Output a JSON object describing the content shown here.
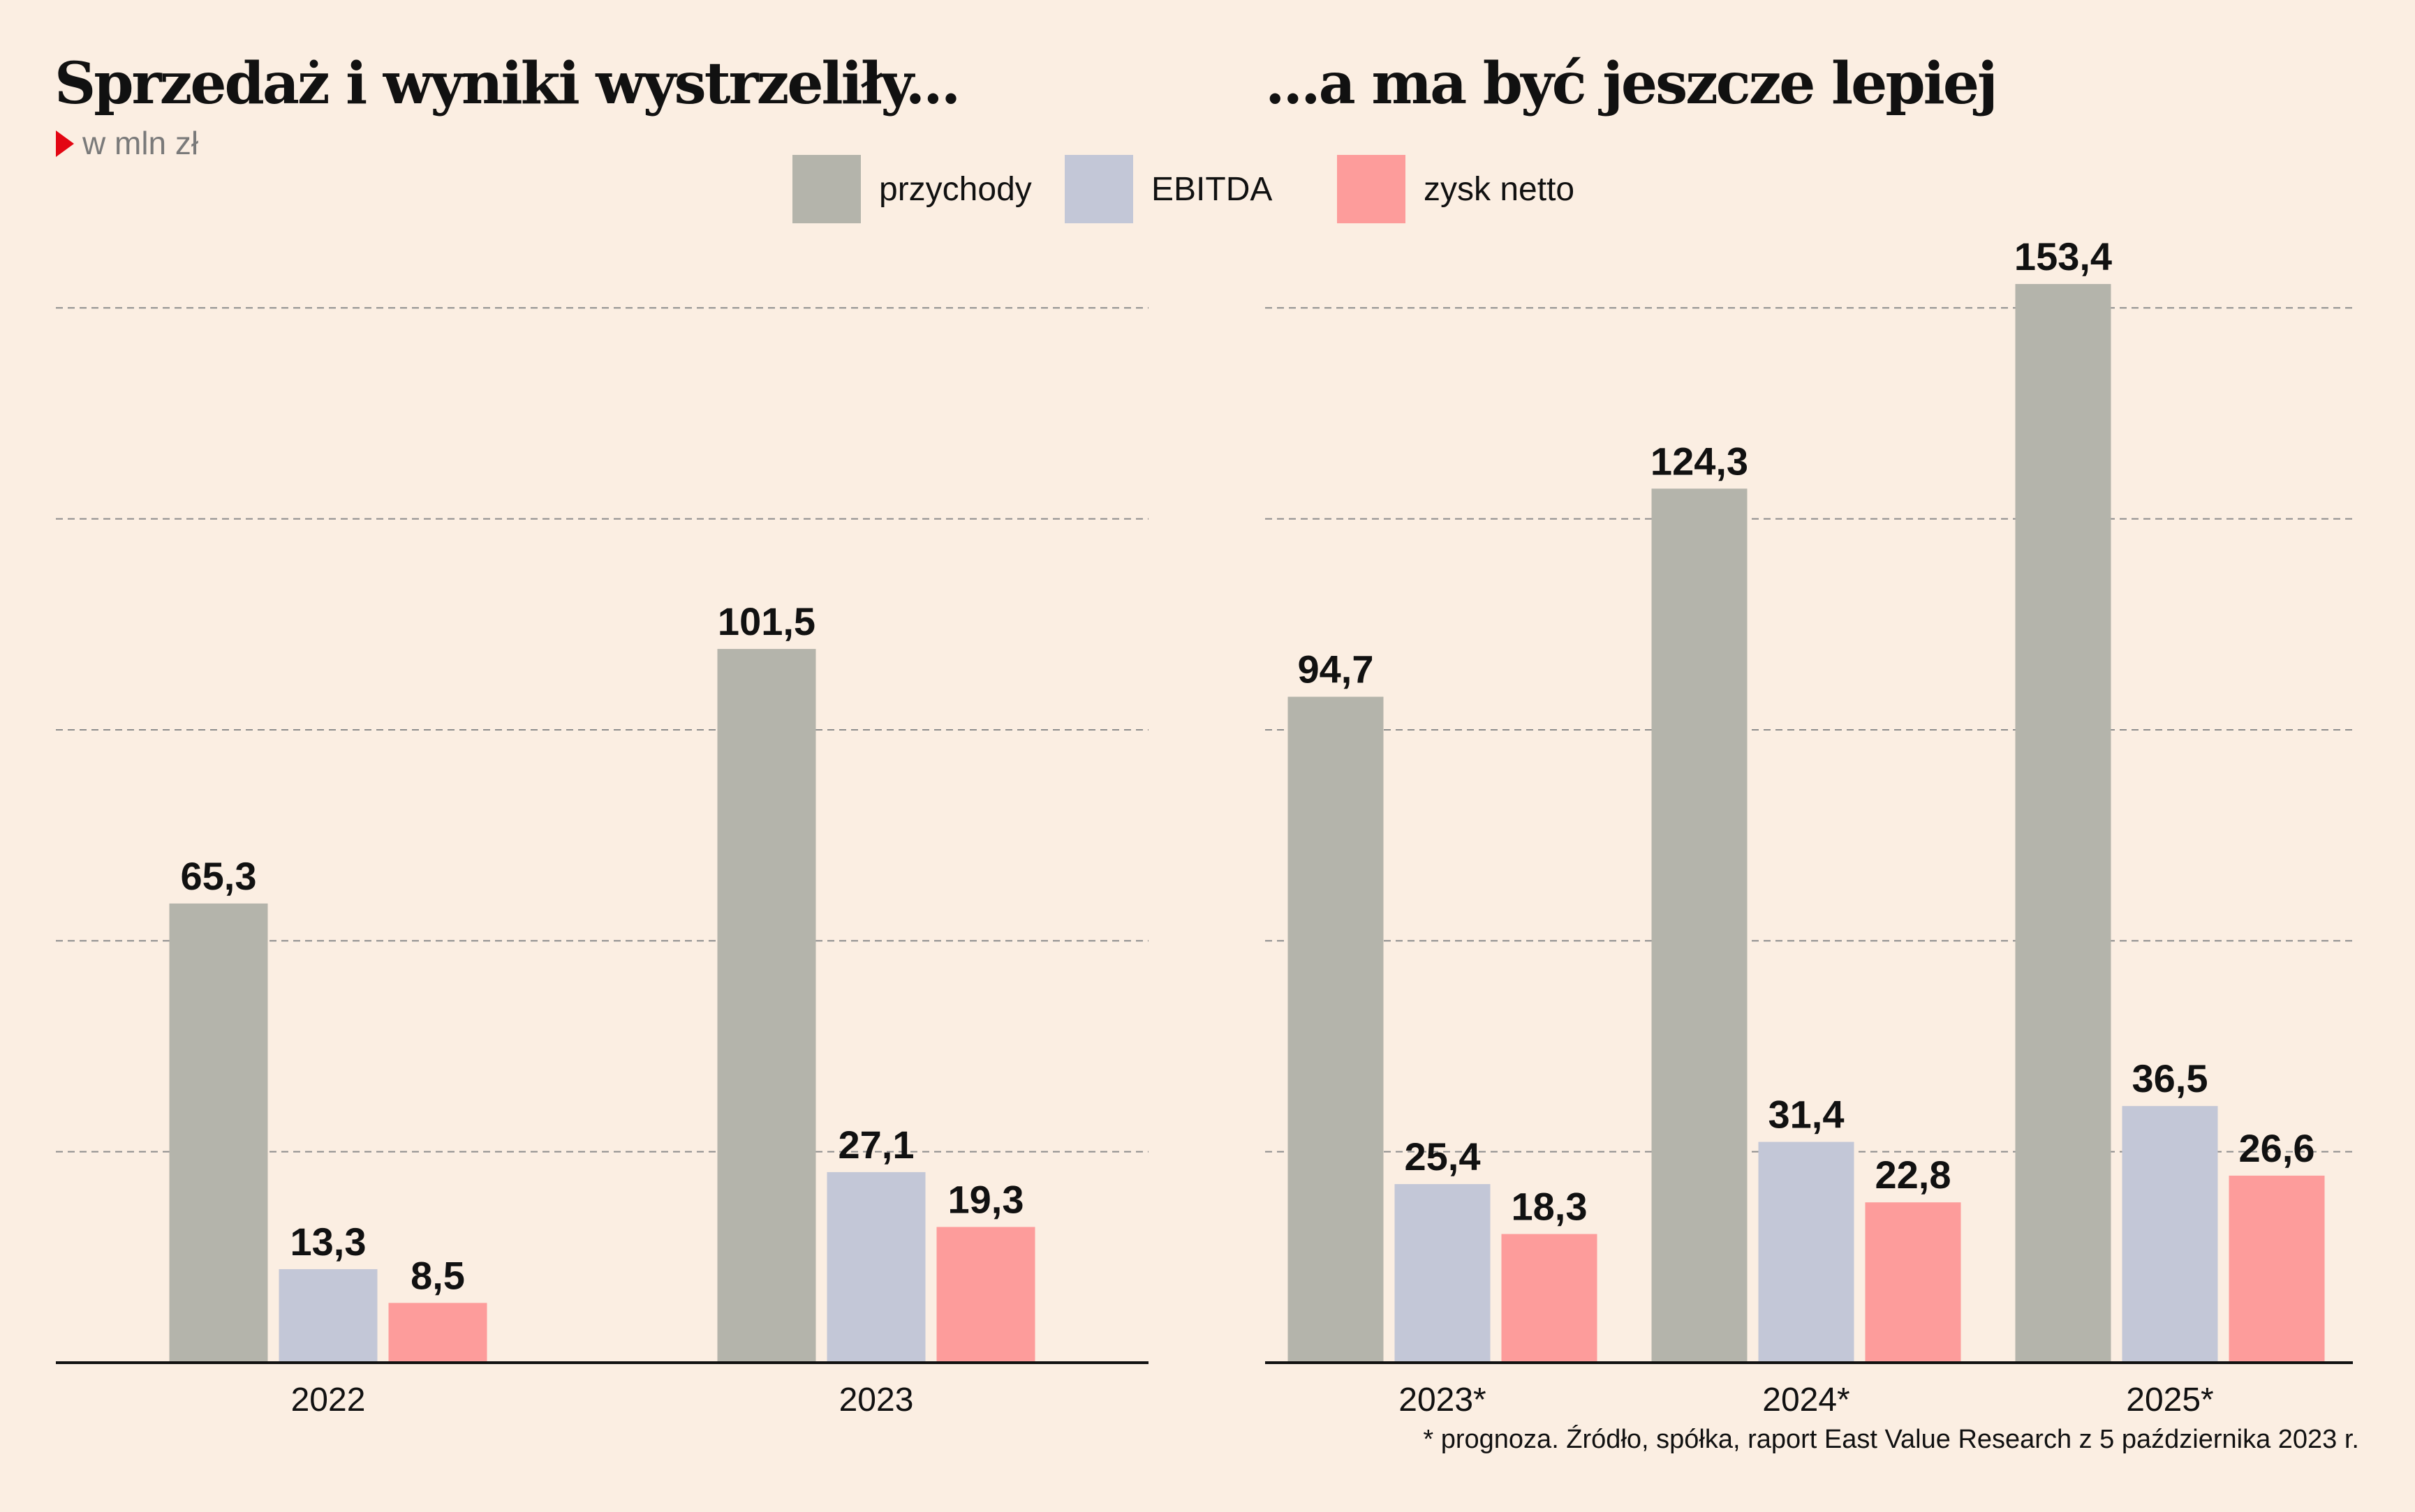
{
  "title_left": "Sprzedaż i wyniki wystrzeliły...",
  "title_right": "...a ma być jeszcze lepiej",
  "unit": "w mln zł",
  "footnote": "* prognoza. Źródło, spółka, raport East Value Research z 5 października 2023 r.",
  "legend": [
    {
      "label": "przychody",
      "color": "#b4b4ab"
    },
    {
      "label": "EBITDA",
      "color": "#c3c7d7"
    },
    {
      "label": "zysk netto",
      "color": "#fd9c9b"
    }
  ],
  "chart_data": [
    {
      "type": "bar",
      "title": "Sprzedaż i wyniki wystrzeliły...",
      "categories": [
        "2022",
        "2023"
      ],
      "series": [
        {
          "name": "przychody",
          "values": [
            65.3,
            101.5
          ],
          "labels": [
            "65,3",
            "101,5"
          ]
        },
        {
          "name": "EBITDA",
          "values": [
            13.3,
            27.1
          ],
          "labels": [
            "13,3",
            "27,1"
          ]
        },
        {
          "name": "zysk netto",
          "values": [
            8.5,
            19.3
          ],
          "labels": [
            "8,5",
            "19,3"
          ]
        }
      ],
      "ylim": [
        0,
        150
      ],
      "grid": true,
      "legend": "top"
    },
    {
      "type": "bar",
      "title": "...a ma być jeszcze lepiej",
      "categories": [
        "2023*",
        "2024*",
        "2025*"
      ],
      "series": [
        {
          "name": "przychody",
          "values": [
            94.7,
            124.3,
            153.4
          ],
          "labels": [
            "94,7",
            "124,3",
            "153,4"
          ]
        },
        {
          "name": "EBITDA",
          "values": [
            25.4,
            31.4,
            36.5
          ],
          "labels": [
            "25,4",
            "31,4",
            "36,5"
          ]
        },
        {
          "name": "zysk netto",
          "values": [
            18.3,
            22.8,
            26.6
          ],
          "labels": [
            "18,3",
            "22,8",
            "26,6"
          ]
        }
      ],
      "ylim": [
        0,
        150
      ],
      "grid": true,
      "legend": "top"
    }
  ]
}
